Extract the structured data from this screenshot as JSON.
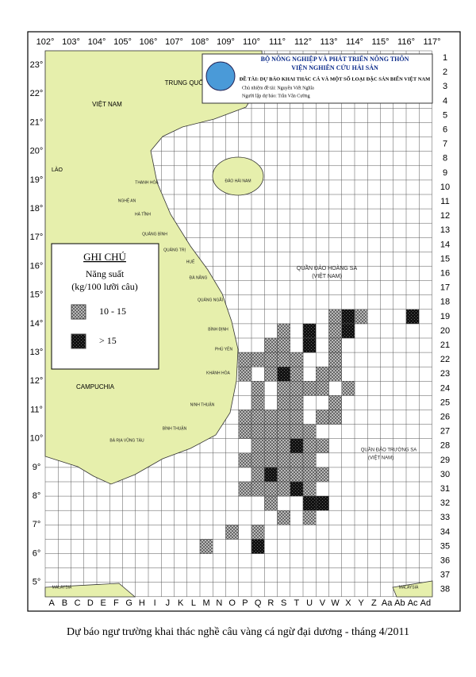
{
  "map": {
    "lon_ticks": [
      {
        "value": 102,
        "label": "102°"
      },
      {
        "value": 103,
        "label": "103°"
      },
      {
        "value": 104,
        "label": "104°"
      },
      {
        "value": 105,
        "label": "105°"
      },
      {
        "value": 106,
        "label": "106°"
      },
      {
        "value": 107,
        "label": "107°"
      },
      {
        "value": 108,
        "label": "108°"
      },
      {
        "value": 109,
        "label": "109°"
      },
      {
        "value": 110,
        "label": "110°"
      },
      {
        "value": 111,
        "label": "111°"
      },
      {
        "value": 112,
        "label": "112°"
      },
      {
        "value": 113,
        "label": "113°"
      },
      {
        "value": 114,
        "label": "114°"
      },
      {
        "value": 115,
        "label": "115°"
      },
      {
        "value": 116,
        "label": "116°"
      },
      {
        "value": 117,
        "label": "117°"
      }
    ],
    "lat_ticks": [
      {
        "value": 23,
        "label": "23°"
      },
      {
        "value": 22,
        "label": "22°"
      },
      {
        "value": 21,
        "label": "21°"
      },
      {
        "value": 20,
        "label": "20°"
      },
      {
        "value": 19,
        "label": "19°"
      },
      {
        "value": 18,
        "label": "18°"
      },
      {
        "value": 17,
        "label": "17°"
      },
      {
        "value": 16,
        "label": "16°"
      },
      {
        "value": 15,
        "label": "15°"
      },
      {
        "value": 14,
        "label": "14°"
      },
      {
        "value": 13,
        "label": "13°"
      },
      {
        "value": 12,
        "label": "12°"
      },
      {
        "value": 11,
        "label": "11°"
      },
      {
        "value": 10,
        "label": "10°"
      },
      {
        "value": 9,
        "label": "9°"
      },
      {
        "value": 8,
        "label": "8°"
      },
      {
        "value": 7,
        "label": "7°"
      },
      {
        "value": 6,
        "label": "6°"
      },
      {
        "value": 5,
        "label": "5°"
      }
    ],
    "columns": [
      "A",
      "B",
      "C",
      "D",
      "E",
      "F",
      "G",
      "H",
      "I",
      "J",
      "K",
      "L",
      "M",
      "N",
      "O",
      "P",
      "Q",
      "R",
      "S",
      "T",
      "U",
      "V",
      "W",
      "X",
      "Y",
      "Z",
      "Aa",
      "Ab",
      "Ac",
      "Ad"
    ],
    "rows": [
      1,
      2,
      3,
      4,
      5,
      6,
      7,
      8,
      9,
      10,
      11,
      12,
      13,
      14,
      15,
      16,
      17,
      18,
      19,
      20,
      21,
      22,
      23,
      24,
      25,
      26,
      27,
      28,
      29,
      30,
      31,
      32,
      33,
      34,
      35,
      36,
      37,
      38
    ],
    "places": [
      "TRUNG QUỐC",
      "VIỆT NAM",
      "LÀO",
      "CAMPUCHIA",
      "ĐẢO HẢI NAM",
      "QUẦN ĐẢO HOÀNG SA",
      "(VIỆT NAM)",
      "QUẦN ĐẢO TRƯỜNG SA",
      "(VIỆT NAM)",
      "MALAYSIA",
      "MALAYSIA",
      "THANH HÓA",
      "NGHỆ AN",
      "HÀ TĨNH",
      "QUẢNG BÌNH",
      "QUẢNG TRỊ",
      "HUẾ",
      "ĐÀ NẴNG",
      "QUẢNG NGÃI",
      "BÌNH ĐỊNH",
      "PHÚ YÊN",
      "KHÁNH HÒA",
      "NINH THUẬN",
      "BÌNH THUẬN",
      "BÀ RỊA VŨNG TÀU"
    ]
  },
  "header": {
    "lines": [
      "BỘ NÔNG NGHIỆP VÀ PHÁT TRIỂN NÔNG THÔN",
      "VIỆN NGHIÊN CỨU HẢI SẢN",
      "ĐỀ TÀI: DỰ BÁO KHAI THÁC CÁ VÀ MỘT SỐ LOẠI ĐẶC SẢN BIỂN VIỆT NAM",
      "Chủ nhiệm đề tài: Nguyễn Viết Nghĩa",
      "Người lập dự báo: Trần Văn Cường"
    ]
  },
  "legend": {
    "title": "GHI CHÚ",
    "subtitle": "Năng suất",
    "unit": "(kg/100 lưỡi câu)",
    "items": [
      {
        "label": "10 - 15",
        "cells": [
          [
            "W",
            19
          ],
          [
            "Y",
            19
          ],
          [
            "S",
            20
          ],
          [
            "W",
            20
          ],
          [
            "R",
            21
          ],
          [
            "S",
            21
          ],
          [
            "W",
            21
          ],
          [
            "P",
            22
          ],
          [
            "Q",
            22
          ],
          [
            "R",
            22
          ],
          [
            "S",
            22
          ],
          [
            "T",
            22
          ],
          [
            "W",
            22
          ],
          [
            "P",
            23
          ],
          [
            "R",
            23
          ],
          [
            "T",
            23
          ],
          [
            "V",
            23
          ],
          [
            "W",
            23
          ],
          [
            "Q",
            24
          ],
          [
            "S",
            24
          ],
          [
            "T",
            24
          ],
          [
            "U",
            24
          ],
          [
            "V",
            24
          ],
          [
            "X",
            24
          ],
          [
            "Q",
            25
          ],
          [
            "S",
            25
          ],
          [
            "T",
            25
          ],
          [
            "W",
            25
          ],
          [
            "P",
            26
          ],
          [
            "Q",
            26
          ],
          [
            "R",
            26
          ],
          [
            "S",
            26
          ],
          [
            "T",
            26
          ],
          [
            "V",
            26
          ],
          [
            "W",
            26
          ],
          [
            "P",
            27
          ],
          [
            "Q",
            27
          ],
          [
            "R",
            27
          ],
          [
            "S",
            27
          ],
          [
            "T",
            27
          ],
          [
            "U",
            27
          ],
          [
            "Q",
            28
          ],
          [
            "R",
            28
          ],
          [
            "S",
            28
          ],
          [
            "U",
            28
          ],
          [
            "V",
            28
          ],
          [
            "P",
            29
          ],
          [
            "Q",
            29
          ],
          [
            "R",
            29
          ],
          [
            "S",
            29
          ],
          [
            "T",
            29
          ],
          [
            "U",
            29
          ],
          [
            "Q",
            30
          ],
          [
            "S",
            30
          ],
          [
            "T",
            30
          ],
          [
            "U",
            30
          ],
          [
            "V",
            30
          ],
          [
            "P",
            31
          ],
          [
            "Q",
            31
          ],
          [
            "R",
            31
          ],
          [
            "S",
            31
          ],
          [
            "U",
            31
          ],
          [
            "R",
            32
          ],
          [
            "S",
            33
          ],
          [
            "U",
            33
          ],
          [
            "O",
            34
          ],
          [
            "Q",
            34
          ],
          [
            "M",
            35
          ]
        ]
      },
      {
        "label": "> 15",
        "cells": [
          [
            "X",
            19
          ],
          [
            "Ac",
            19
          ],
          [
            "U",
            20
          ],
          [
            "X",
            20
          ],
          [
            "U",
            21
          ],
          [
            "S",
            23
          ],
          [
            "T",
            28
          ],
          [
            "R",
            30
          ],
          [
            "T",
            31
          ],
          [
            "U",
            32
          ],
          [
            "V",
            32
          ],
          [
            "Q",
            35
          ]
        ]
      }
    ]
  },
  "caption": "Dự báo ngư trường khai thác nghề câu vàng cá ngừ đại dương - tháng 4/2011"
}
